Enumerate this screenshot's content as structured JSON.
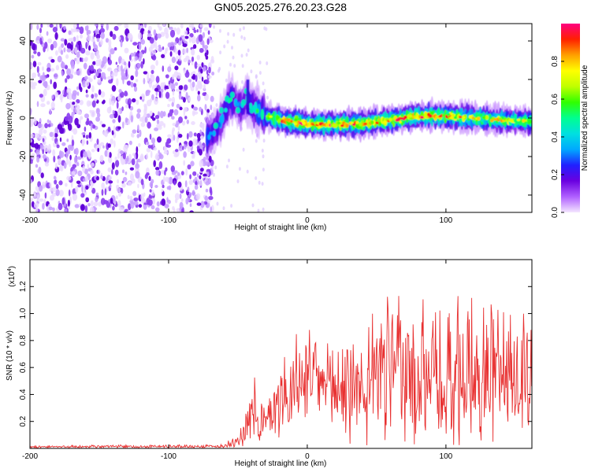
{
  "title": "GN05.2025.276.20.23.G28",
  "chart_data": [
    {
      "type": "heatmap",
      "xlabel": "Height of straight line (km)",
      "ylabel": "Frequency (Hz)",
      "xlim": [
        -200,
        162
      ],
      "ylim": [
        -49,
        49
      ],
      "xticks": [
        -200,
        -100,
        0,
        100
      ],
      "yticks": [
        -40,
        -20,
        0,
        20,
        40
      ],
      "colorbar": {
        "label": "Normalized spectral amplitude",
        "range": [
          0,
          1
        ],
        "ticks": [
          0.0,
          0.2,
          0.4,
          0.6,
          0.8
        ],
        "tick_labels": [
          "0.0",
          "0.2",
          "0.4",
          "0.6",
          "0.8"
        ],
        "colors": [
          "#f4e6ff",
          "#b060ff",
          "#6a00e0",
          "#2020ff",
          "#00a8ff",
          "#00e0e0",
          "#00ff90",
          "#30ff00",
          "#c0ff00",
          "#ffff00",
          "#ffa000",
          "#ff2000",
          "#ff0080"
        ]
      },
      "noise_region": {
        "x_start": -200,
        "x_end": -68,
        "amplitude": 0.18
      },
      "signal_track": [
        {
          "x": -72,
          "freq": -10,
          "amplitude": 0.35
        },
        {
          "x": -68,
          "freq": -8,
          "amplitude": 0.3
        },
        {
          "x": -64,
          "freq": -4,
          "amplitude": 0.3
        },
        {
          "x": -60,
          "freq": 2,
          "amplitude": 0.4
        },
        {
          "x": -56,
          "freq": 10,
          "amplitude": 0.45
        },
        {
          "x": -52,
          "freq": 9,
          "amplitude": 0.35
        },
        {
          "x": -48,
          "freq": 5,
          "amplitude": 0.3
        },
        {
          "x": -44,
          "freq": 10,
          "amplitude": 0.4
        },
        {
          "x": -40,
          "freq": 6,
          "amplitude": 0.4
        },
        {
          "x": -36,
          "freq": 4,
          "amplitude": 0.5
        },
        {
          "x": -30,
          "freq": 1,
          "amplitude": 0.6
        },
        {
          "x": -20,
          "freq": -1,
          "amplitude": 0.75
        },
        {
          "x": -10,
          "freq": -2,
          "amplitude": 0.85
        },
        {
          "x": 0,
          "freq": -3,
          "amplitude": 0.85
        },
        {
          "x": 20,
          "freq": -3.5,
          "amplitude": 0.8
        },
        {
          "x": 40,
          "freq": -3,
          "amplitude": 0.8
        },
        {
          "x": 60,
          "freq": -1,
          "amplitude": 0.8
        },
        {
          "x": 80,
          "freq": 1,
          "amplitude": 0.8
        },
        {
          "x": 100,
          "freq": 1,
          "amplitude": 0.75
        },
        {
          "x": 120,
          "freq": 0,
          "amplitude": 0.7
        },
        {
          "x": 140,
          "freq": -1,
          "amplitude": 0.7
        },
        {
          "x": 162,
          "freq": -2,
          "amplitude": 0.65
        }
      ]
    },
    {
      "type": "line",
      "xlabel": "Height of straight line (km)",
      "ylabel": "SNR (10 * v/v)",
      "y_multiplier": "(x10",
      "y_multiplier_exp": "4",
      "xlim": [
        -200,
        162
      ],
      "ylim": [
        0,
        1.4
      ],
      "xticks": [
        -200,
        -100,
        0,
        100
      ],
      "yticks": [
        0.2,
        0.4,
        0.6,
        0.8,
        1.0,
        1.2
      ],
      "ytick_labels": [
        "0.2",
        "0.4",
        "0.6",
        "0.8",
        "1.0",
        "1.2"
      ],
      "series": [
        {
          "name": "SNR",
          "color": "#e83030",
          "envelope": [
            {
              "x": -200,
              "base": 0.01,
              "amp": 0.01
            },
            {
              "x": -60,
              "base": 0.01,
              "amp": 0.02
            },
            {
              "x": -45,
              "base": 0.05,
              "amp": 0.18
            },
            {
              "x": -38,
              "base": 0.15,
              "amp": 0.45
            },
            {
              "x": -30,
              "base": 0.08,
              "amp": 0.25
            },
            {
              "x": -20,
              "base": 0.25,
              "amp": 0.5
            },
            {
              "x": -10,
              "base": 0.3,
              "amp": 0.5
            },
            {
              "x": 0,
              "base": 0.55,
              "amp": 0.25
            },
            {
              "x": 10,
              "base": 0.45,
              "amp": 0.25
            },
            {
              "x": 20,
              "base": 0.3,
              "amp": 0.5
            },
            {
              "x": 40,
              "base": 0.3,
              "amp": 0.65
            },
            {
              "x": 60,
              "base": 0.3,
              "amp": 0.85
            },
            {
              "x": 90,
              "base": 0.3,
              "amp": 0.85
            },
            {
              "x": 120,
              "base": 0.3,
              "amp": 0.8
            },
            {
              "x": 162,
              "base": 0.3,
              "amp": 0.85
            }
          ]
        }
      ]
    }
  ]
}
